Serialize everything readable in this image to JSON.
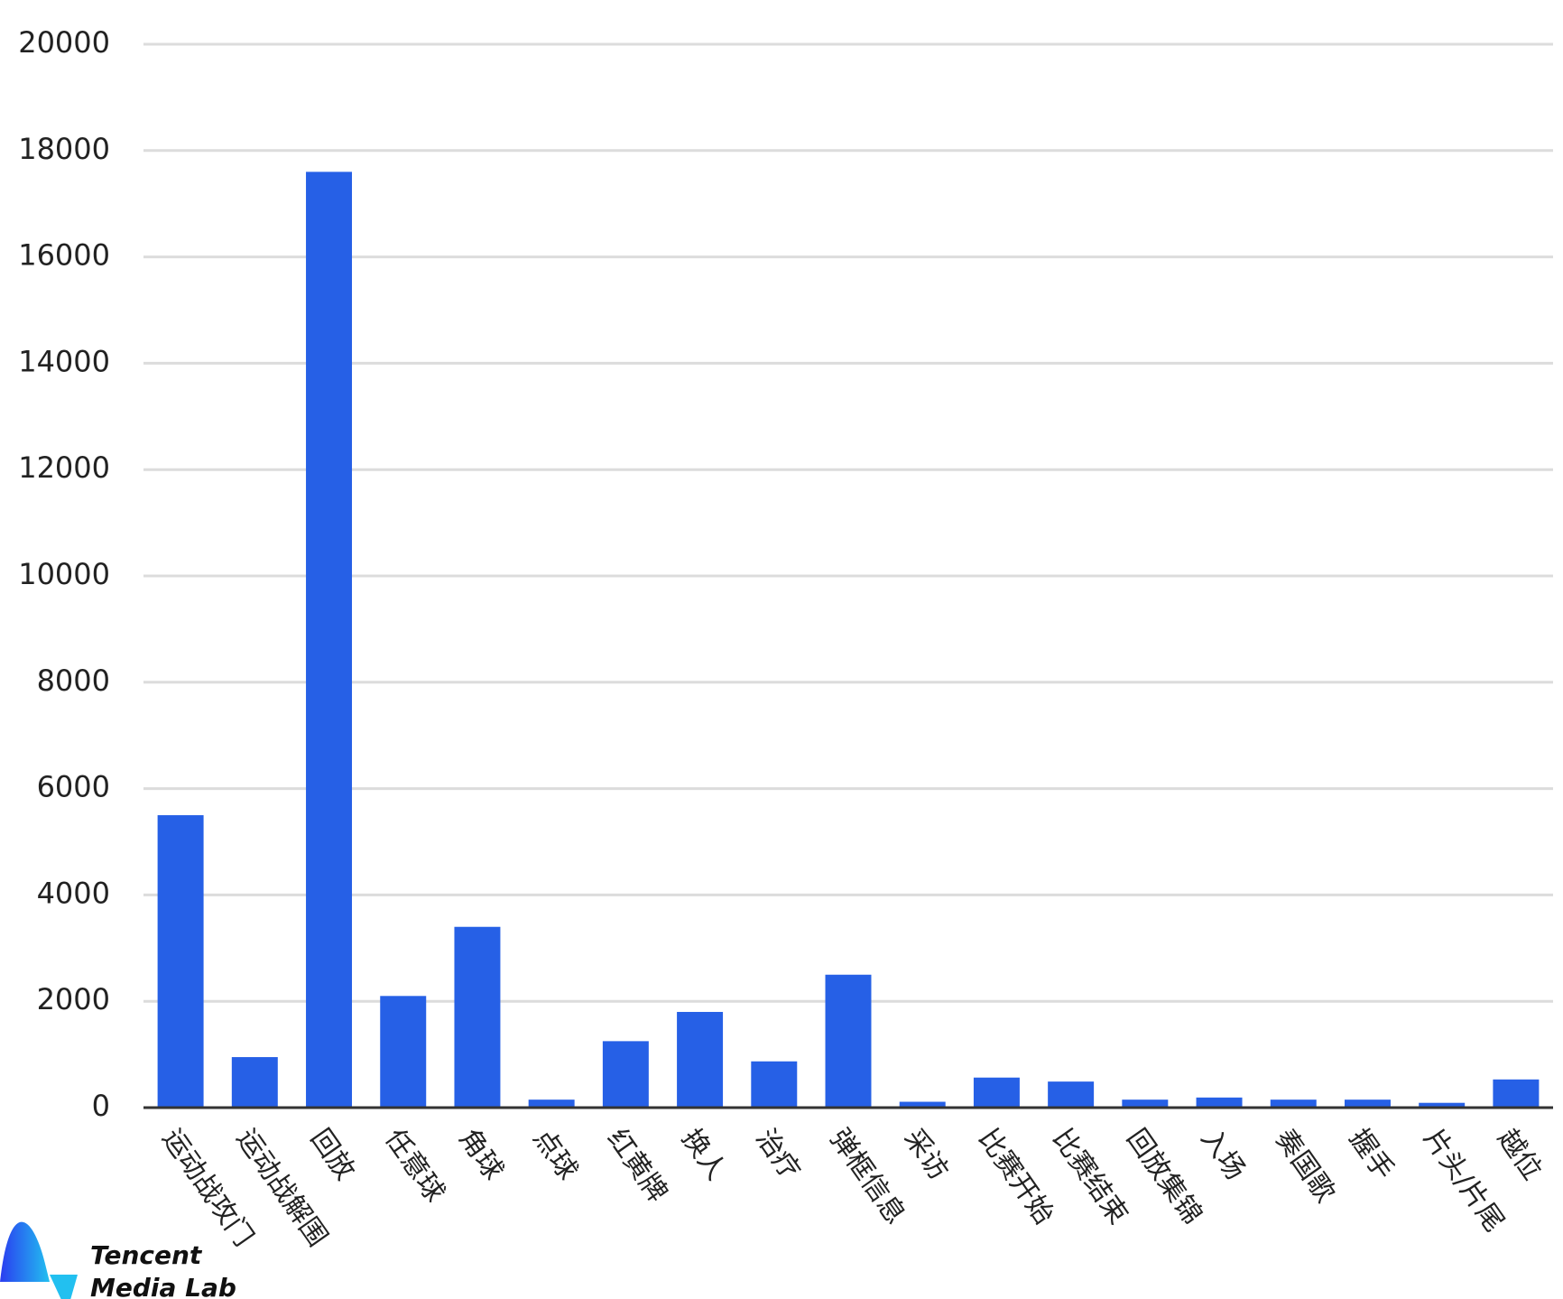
{
  "chart_data": {
    "type": "bar",
    "categories": [
      "运动战攻门",
      "运动战解围",
      "回放",
      "任意球",
      "角球",
      "点球",
      "红黄牌",
      "换人",
      "治疗",
      "弹框信息",
      "采访",
      "比赛开始",
      "比赛结束",
      "回放集锦",
      "入场",
      "奏国歌",
      "握手",
      "片头/片尾",
      "越位"
    ],
    "values": [
      5500,
      950,
      17600,
      2100,
      3400,
      150,
      1250,
      1800,
      870,
      2500,
      110,
      565,
      490,
      150,
      190,
      150,
      150,
      90,
      530
    ],
    "color": "#2660e6",
    "ylim": [
      0,
      20000
    ],
    "yticks": [
      0,
      2000,
      4000,
      6000,
      8000,
      10000,
      12000,
      14000,
      16000,
      18000,
      20000
    ],
    "grid": true,
    "logo_text": [
      "Tencent",
      "Media Lab"
    ]
  }
}
